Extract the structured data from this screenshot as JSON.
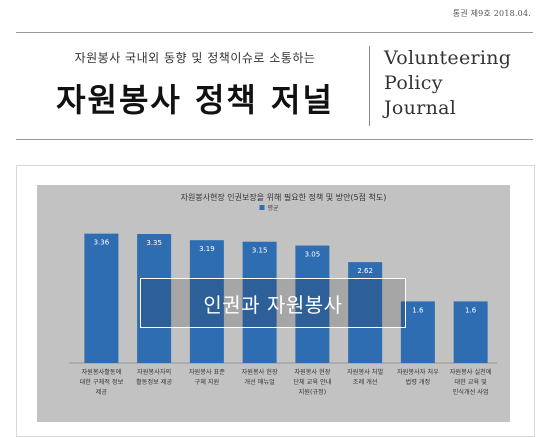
{
  "issue_line": "통권 제9호 2018.04.",
  "masthead": {
    "subtitle": "자원봉사 국내외 동향 및 정책이슈로 소통하는",
    "title": "자원봉사 정책 저널",
    "english": [
      "Volunteering",
      "Policy",
      "Journal"
    ]
  },
  "overlay_label": "인권과 자원봉사",
  "colors": {
    "bar": "#2f6db3",
    "chart_bg": "#c2c2c2"
  },
  "chart_data": {
    "type": "bar",
    "title": "자원봉사현장 인권보장을 위해 필요한 정책 및 방안(5점 척도)",
    "legend": "평균",
    "legend_position": "top",
    "ylim": [
      0,
      4
    ],
    "categories": [
      [
        "자원봉사활동에",
        "대한 구체적 정보",
        "제공"
      ],
      [
        "자원봉사자의",
        "활동정보 제공",
        ""
      ],
      [
        "자원봉사 표준",
        "구체 지원",
        ""
      ],
      [
        "자원봉사 현장",
        "개선 매뉴얼",
        ""
      ],
      [
        "자원봉사 현장",
        "단체 교육 안내",
        "지원(규정)"
      ],
      [
        "자원봉사 처벌",
        "조례 개선",
        ""
      ],
      [
        "자원봉사자 처우",
        "법령 개정",
        ""
      ],
      [
        "자원봉사 실천에",
        "대한 교육 및",
        "인식개선 사업"
      ]
    ],
    "values": [
      3.36,
      3.35,
      3.19,
      3.15,
      3.05,
      2.62,
      1.6,
      1.6
    ],
    "value_labels": [
      "3.36",
      "3.35",
      "3.19",
      "3.15",
      "3.05",
      "2.62",
      "1.6",
      "1.6"
    ]
  }
}
